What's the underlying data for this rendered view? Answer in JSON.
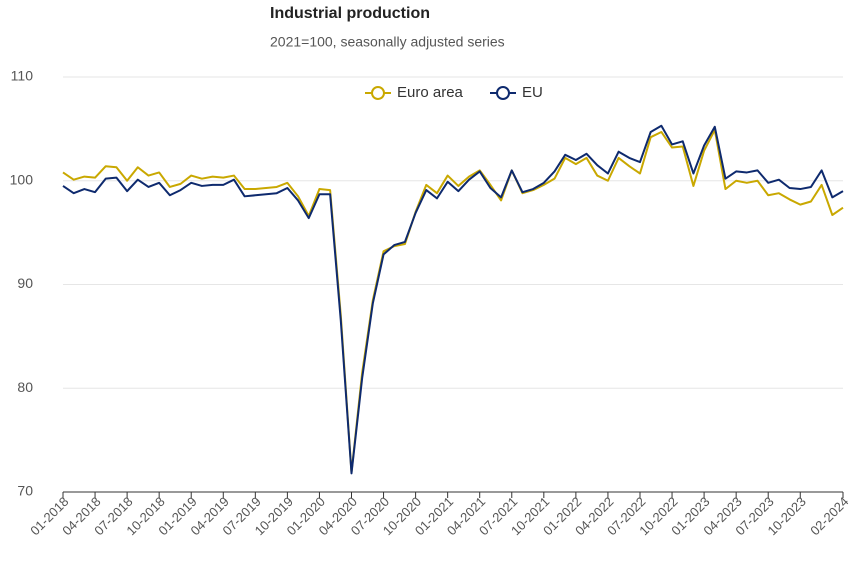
{
  "chart_data": {
    "type": "line",
    "title": "Industrial production",
    "subtitle": "2021=100, seasonally adjusted series",
    "categories": [
      "01-2018",
      null,
      null,
      "04-2018",
      null,
      null,
      "07-2018",
      null,
      null,
      "10-2018",
      null,
      null,
      "01-2019",
      null,
      null,
      "04-2019",
      null,
      null,
      "07-2019",
      null,
      null,
      "10-2019",
      null,
      null,
      "01-2020",
      null,
      null,
      "04-2020",
      null,
      null,
      "07-2020",
      null,
      null,
      "10-2020",
      null,
      null,
      "01-2021",
      null,
      null,
      "04-2021",
      null,
      null,
      "07-2021",
      null,
      null,
      "10-2021",
      null,
      null,
      "01-2022",
      null,
      null,
      "04-2022",
      null,
      null,
      "07-2022",
      null,
      null,
      "10-2022",
      null,
      null,
      "01-2023",
      null,
      null,
      "04-2023",
      null,
      null,
      "07-2023",
      null,
      null,
      "10-2023",
      null,
      null,
      null,
      "02-2024"
    ],
    "series": [
      {
        "name": "Euro area",
        "color": "#c9a800",
        "values": [
          100.8,
          100.1,
          100.4,
          100.3,
          101.4,
          101.3,
          100.0,
          101.3,
          100.5,
          100.8,
          99.4,
          99.7,
          100.5,
          100.2,
          100.4,
          100.3,
          100.5,
          99.2,
          99.2,
          99.3,
          99.4,
          99.8,
          98.5,
          96.6,
          99.2,
          99.1,
          87.0,
          71.9,
          81.5,
          88.5,
          93.2,
          93.7,
          93.9,
          97.0,
          99.6,
          98.8,
          100.5,
          99.5,
          100.4,
          101.0,
          99.6,
          98.1,
          101.0,
          98.8,
          99.1,
          99.6,
          100.2,
          102.2,
          101.6,
          102.2,
          100.5,
          100.0,
          102.2,
          101.4,
          100.7,
          104.2,
          104.7,
          103.2,
          103.3,
          99.5,
          102.9,
          104.9,
          99.2,
          100.0,
          99.8,
          100.0,
          98.6,
          98.8,
          98.2,
          97.7,
          98.0,
          99.6,
          96.7,
          97.4
        ]
      },
      {
        "name": "EU",
        "color": "#0e2a6e",
        "values": [
          99.5,
          98.8,
          99.2,
          98.9,
          100.2,
          100.3,
          99.0,
          100.1,
          99.4,
          99.8,
          98.6,
          99.1,
          99.8,
          99.5,
          99.6,
          99.6,
          100.1,
          98.5,
          98.6,
          98.7,
          98.8,
          99.3,
          98.1,
          96.4,
          98.7,
          98.7,
          86.5,
          71.8,
          81.0,
          88.2,
          92.9,
          93.8,
          94.1,
          96.9,
          99.1,
          98.3,
          99.9,
          99.0,
          100.1,
          100.9,
          99.3,
          98.4,
          101.0,
          98.9,
          99.2,
          99.8,
          100.9,
          102.5,
          102.0,
          102.6,
          101.5,
          100.7,
          102.8,
          102.2,
          101.8,
          104.7,
          105.3,
          103.5,
          103.8,
          100.7,
          103.4,
          105.2,
          100.2,
          100.9,
          100.8,
          101.0,
          99.8,
          100.1,
          99.3,
          99.2,
          99.4,
          101.0,
          98.4,
          99.0
        ]
      }
    ],
    "ylim": [
      70,
      110
    ],
    "yticks": [
      70,
      80,
      90,
      100,
      110
    ],
    "grid": true,
    "legend": "top"
  }
}
